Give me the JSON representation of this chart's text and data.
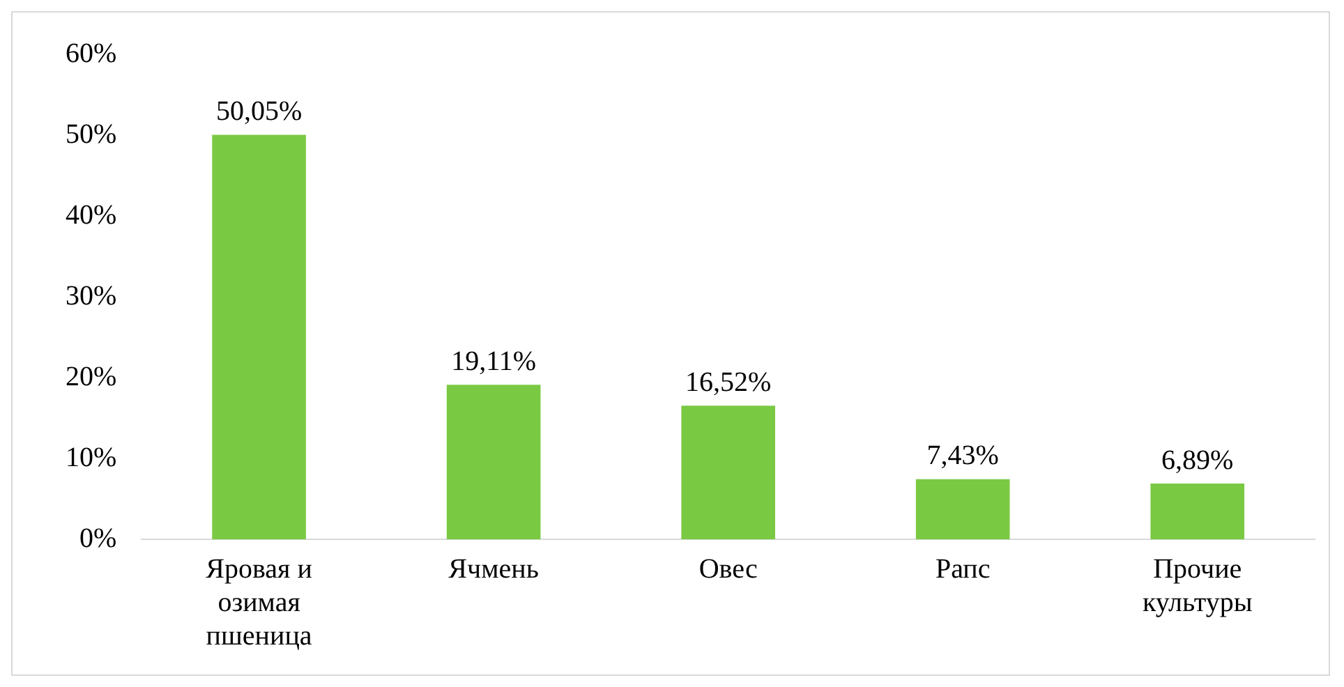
{
  "chart_data": {
    "type": "bar",
    "categories": [
      "Яровая и озимая пшеница",
      "Ячмень",
      "Овес",
      "Рапс",
      "Прочие культуры"
    ],
    "values": [
      50.05,
      19.11,
      16.52,
      7.43,
      6.89
    ],
    "value_labels": [
      "50,05%",
      "19,11%",
      "16,52%",
      "7,43%",
      "6,89%"
    ],
    "color": "#7ac943",
    "ylim": [
      0,
      60
    ],
    "yticks": [
      {
        "value": 0,
        "label": "0%"
      },
      {
        "value": 10,
        "label": "10%"
      },
      {
        "value": 20,
        "label": "20%"
      },
      {
        "value": 30,
        "label": "30%"
      },
      {
        "value": 40,
        "label": "40%"
      },
      {
        "value": 50,
        "label": "50%"
      },
      {
        "value": 60,
        "label": "60%"
      }
    ],
    "grid": false,
    "legend": false
  }
}
